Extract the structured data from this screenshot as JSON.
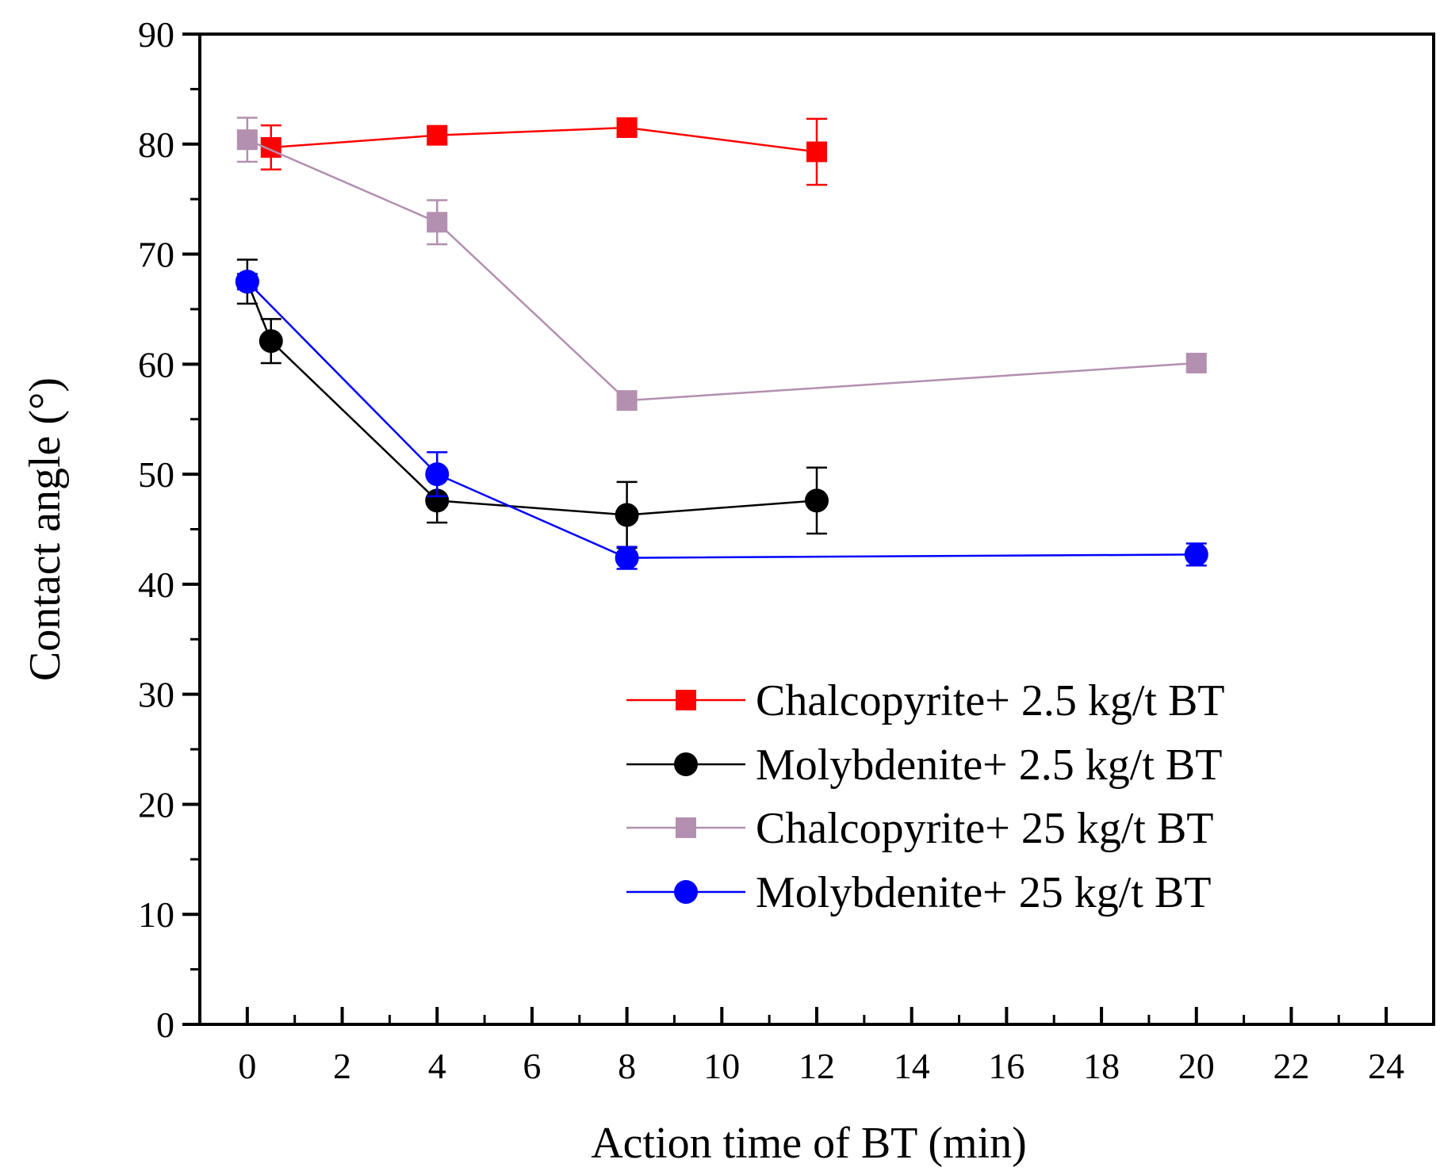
{
  "chart_data": {
    "type": "line",
    "title": "",
    "xlabel": "Action time of BT (min)",
    "ylabel": "Contact angle (°)",
    "xlim": [
      -1,
      25
    ],
    "ylim": [
      0,
      90
    ],
    "xticks": [
      0,
      2,
      4,
      6,
      8,
      10,
      12,
      14,
      16,
      18,
      20,
      22,
      24
    ],
    "yticks": [
      0,
      10,
      20,
      30,
      40,
      50,
      60,
      70,
      80,
      90
    ],
    "legend_position": "bottom-right",
    "series": [
      {
        "name": "Chalcopyrite+ 2.5 kg/t BT",
        "color": "#ff0000",
        "marker": "square",
        "x": [
          0.5,
          4,
          8,
          12
        ],
        "y": [
          79.7,
          80.8,
          81.5,
          79.3
        ],
        "err": [
          2.0,
          0.7,
          0.7,
          3.0
        ]
      },
      {
        "name": "Molybdenite+ 2.5 kg/t BT",
        "color": "#000000",
        "marker": "circle",
        "x": [
          0,
          0.5,
          4,
          8,
          12
        ],
        "y": [
          67.5,
          62.1,
          47.6,
          46.3,
          47.6
        ],
        "err": [
          2.0,
          2.0,
          2.0,
          3.0,
          3.0
        ]
      },
      {
        "name": "Chalcopyrite+ 25 kg/t BT",
        "color": "#b38fb0",
        "marker": "square",
        "x": [
          0,
          4,
          8,
          20
        ],
        "y": [
          80.4,
          72.9,
          56.7,
          60.1
        ],
        "err": [
          2.0,
          2.0,
          0.6,
          0.6
        ]
      },
      {
        "name": "Molybdenite+ 25 kg/t BT",
        "color": "#0000ff",
        "marker": "circle",
        "x": [
          0,
          4,
          8,
          20
        ],
        "y": [
          67.5,
          50.0,
          42.4,
          42.7
        ],
        "err": [
          0.7,
          2.0,
          1.0,
          1.0
        ]
      }
    ]
  }
}
